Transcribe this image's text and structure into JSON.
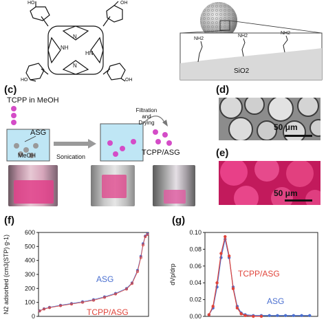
{
  "colors": {
    "magenta": "#d44cc7",
    "pink_photo": "#e0408a",
    "red_series": "#e0443a",
    "blue_series": "#4a6fd0",
    "arrow_gray": "#9a9a9a"
  },
  "panel_top": {
    "surface_labels": [
      "NH2",
      "NH2",
      "NH2"
    ],
    "support_label": "SiO2",
    "molecule_labels": [
      "NH",
      "N",
      "N",
      "HN"
    ]
  },
  "panel_c": {
    "label": "(c)",
    "reagent": "TCPP in MeOH",
    "particle_label": "ASG",
    "solvent_label": "MeOH",
    "step1": "Sonication",
    "step2_line1": "Filtration",
    "step2_line2": "and",
    "step2_line3": "Drying",
    "product": "TCPP/ASG"
  },
  "panel_d": {
    "label": "(d)",
    "scale": "50 μm"
  },
  "panel_e": {
    "label": "(e)",
    "scale": "50 μm"
  },
  "chart_data": [
    {
      "type": "scatter",
      "panel": "(f)",
      "ylabel": "N2 adsorbed (cm3(STP) g-1)",
      "xlabel": "",
      "ylim": [
        0,
        600
      ],
      "yticks": [
        "0",
        "100",
        "200",
        "300",
        "400",
        "500",
        "600"
      ],
      "xlim": [
        0,
        1
      ],
      "series": [
        {
          "name": "ASG",
          "x": [
            0.01,
            0.05,
            0.1,
            0.2,
            0.3,
            0.4,
            0.5,
            0.6,
            0.7,
            0.8,
            0.85,
            0.9,
            0.93,
            0.95,
            0.97,
            0.99
          ],
          "y": [
            40,
            55,
            65,
            80,
            92,
            105,
            120,
            140,
            165,
            200,
            240,
            330,
            430,
            520,
            575,
            590
          ]
        },
        {
          "name": "TCPP/ASG",
          "x": [
            0.01,
            0.05,
            0.1,
            0.2,
            0.3,
            0.4,
            0.5,
            0.6,
            0.7,
            0.8,
            0.85,
            0.9,
            0.93,
            0.95,
            0.97,
            0.99
          ],
          "y": [
            38,
            52,
            62,
            76,
            88,
            100,
            115,
            135,
            160,
            195,
            235,
            320,
            420,
            510,
            570,
            585
          ]
        }
      ],
      "annotations": [
        "ASG",
        "TCPP/ASG"
      ]
    },
    {
      "type": "line",
      "panel": "(g)",
      "ylabel": "dVp/drp",
      "xlabel": "",
      "ylim": [
        0,
        0.1
      ],
      "yticks": [
        "0.00",
        "0.02",
        "0.04",
        "0.06",
        "0.08",
        "0.10"
      ],
      "xlim": [
        0,
        14
      ],
      "series": [
        {
          "name": "ASG",
          "x": [
            0.5,
            1,
            1.5,
            2,
            2.5,
            3,
            3.5,
            4,
            4.5,
            5,
            6,
            7,
            8,
            9,
            10,
            11,
            12,
            13
          ],
          "y": [
            0.002,
            0.01,
            0.035,
            0.07,
            0.092,
            0.07,
            0.035,
            0.012,
            0.004,
            0.002,
            0.001,
            0.001,
            0.001,
            0.001,
            0.001,
            0.001,
            0.001,
            0.001
          ]
        },
        {
          "name": "TCPP/ASG",
          "x": [
            0.5,
            1,
            1.5,
            2,
            2.5,
            3,
            3.5,
            4,
            4.5,
            5,
            6,
            7
          ],
          "y": [
            0.002,
            0.012,
            0.04,
            0.075,
            0.095,
            0.072,
            0.033,
            0.01,
            0.003,
            0.001,
            0.0,
            0.0
          ]
        }
      ],
      "annotations": [
        "TCPP/ASG",
        "ASG"
      ]
    }
  ]
}
